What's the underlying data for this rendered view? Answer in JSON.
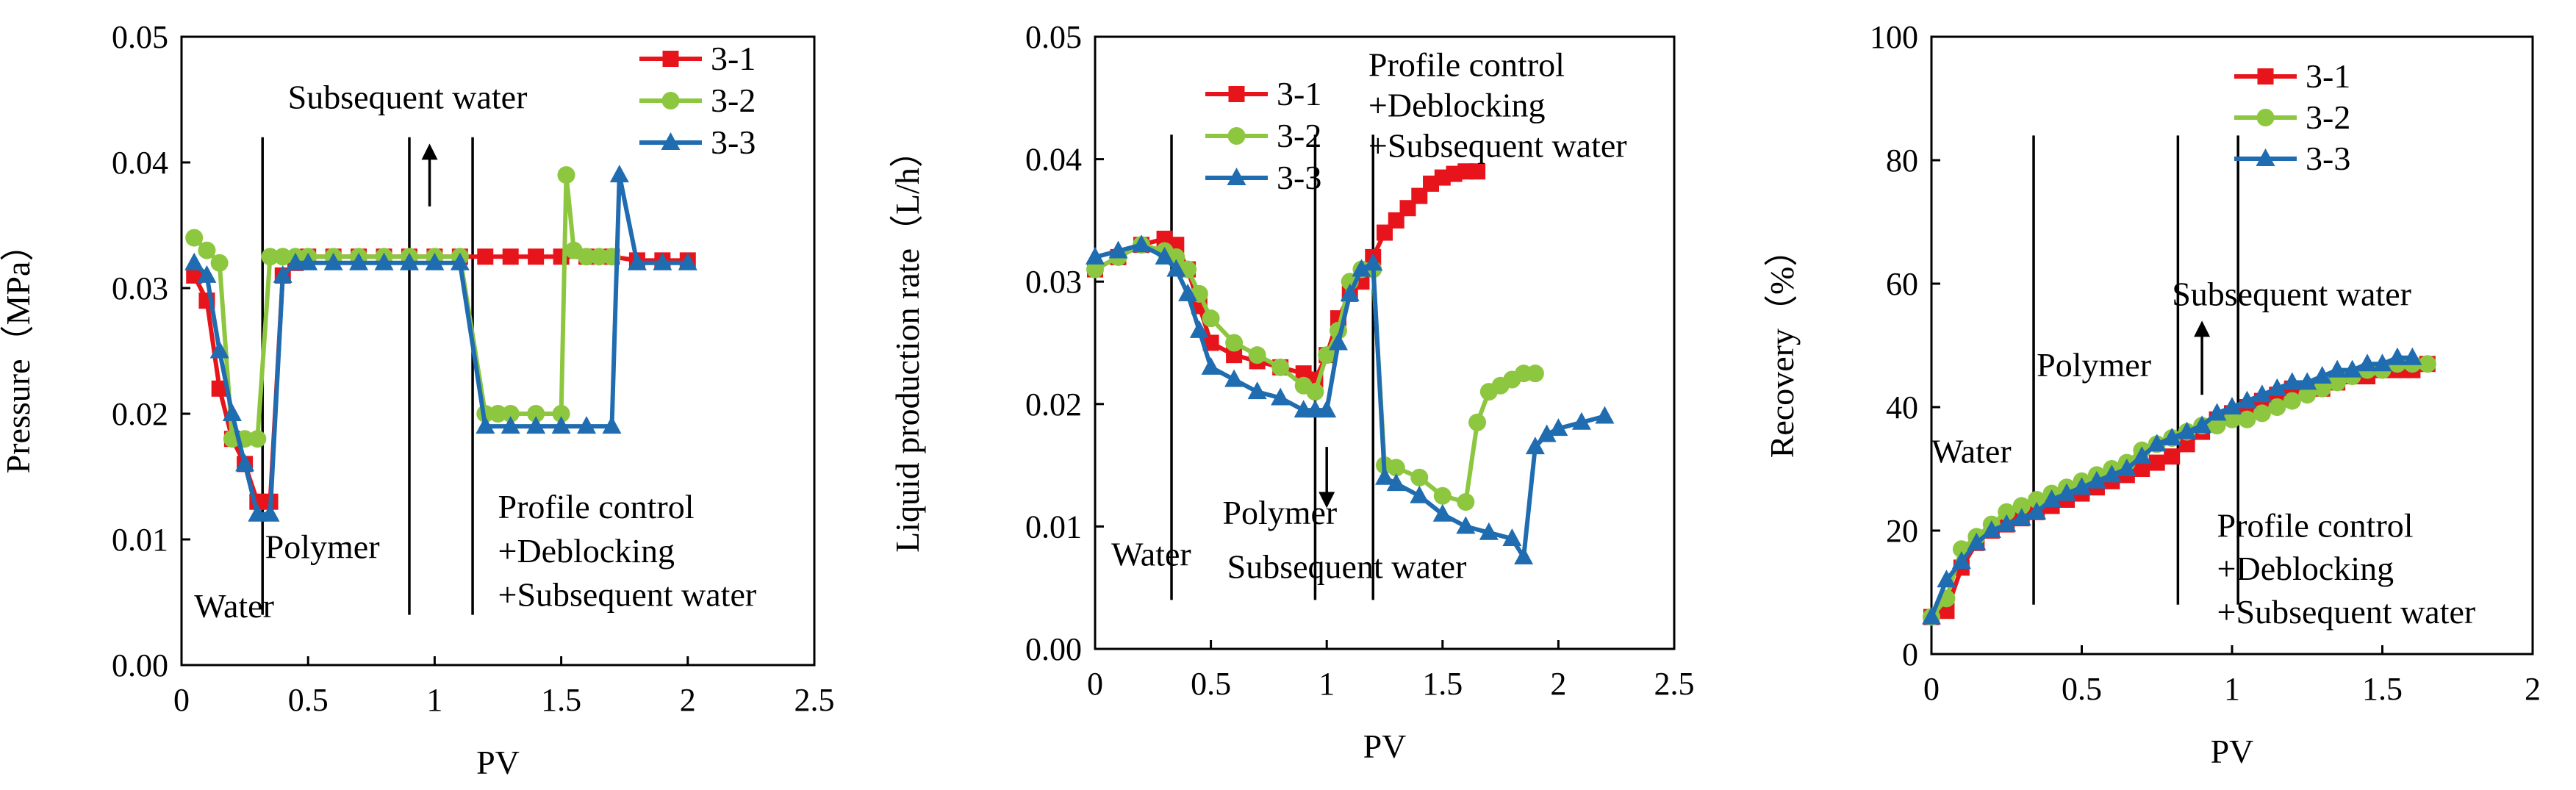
{
  "chart_data": [
    {
      "type": "line",
      "xlabel": "PV",
      "ylabel": "Pressure（MPa）",
      "xlim": [
        0,
        2.5
      ],
      "ylim": [
        0,
        0.05
      ],
      "xticks": [
        "0",
        "0.5",
        "1",
        "1.5",
        "2",
        "2.5"
      ],
      "yticks": [
        "0.00",
        "0.01",
        "0.02",
        "0.03",
        "0.04",
        "0.05"
      ],
      "grid": false,
      "legend": "top-right",
      "series": [
        {
          "name": "3-1",
          "color": "#e8141c",
          "marker": "square",
          "x": [
            0.05,
            0.1,
            0.15,
            0.2,
            0.25,
            0.3,
            0.35,
            0.4,
            0.45,
            0.5,
            0.6,
            0.7,
            0.8,
            0.9,
            1.0,
            1.1,
            1.2,
            1.3,
            1.4,
            1.5,
            1.6,
            1.7,
            1.8,
            1.9,
            2.0
          ],
          "y": [
            0.031,
            0.029,
            0.022,
            0.018,
            0.016,
            0.013,
            0.013,
            0.031,
            0.032,
            0.0325,
            0.0325,
            0.0325,
            0.0325,
            0.0325,
            0.0325,
            0.0325,
            0.0325,
            0.0325,
            0.0325,
            0.0325,
            0.0325,
            0.0325,
            0.0322,
            0.0322,
            0.0322
          ]
        },
        {
          "name": "3-2",
          "color": "#8dc63f",
          "marker": "circle",
          "x": [
            0.05,
            0.1,
            0.15,
            0.2,
            0.25,
            0.3,
            0.35,
            0.4,
            0.45,
            0.5,
            0.6,
            0.7,
            0.8,
            0.9,
            1.0,
            1.1,
            1.2,
            1.25,
            1.3,
            1.4,
            1.5,
            1.52,
            1.55,
            1.6,
            1.65,
            1.7
          ],
          "y": [
            0.034,
            0.033,
            0.032,
            0.018,
            0.018,
            0.018,
            0.0325,
            0.0325,
            0.0325,
            0.0325,
            0.0325,
            0.0325,
            0.0325,
            0.0325,
            0.0325,
            0.0325,
            0.02,
            0.02,
            0.02,
            0.02,
            0.02,
            0.039,
            0.033,
            0.0325,
            0.0325,
            0.0325
          ]
        },
        {
          "name": "3-3",
          "color": "#1f6cb0",
          "marker": "triangle",
          "x": [
            0.05,
            0.1,
            0.15,
            0.2,
            0.25,
            0.3,
            0.35,
            0.4,
            0.45,
            0.5,
            0.6,
            0.7,
            0.8,
            0.9,
            1.0,
            1.1,
            1.2,
            1.3,
            1.4,
            1.5,
            1.6,
            1.7,
            1.73,
            1.8,
            1.9,
            2.0
          ],
          "y": [
            0.032,
            0.031,
            0.025,
            0.02,
            0.016,
            0.012,
            0.012,
            0.031,
            0.032,
            0.032,
            0.032,
            0.032,
            0.032,
            0.032,
            0.032,
            0.032,
            0.019,
            0.019,
            0.019,
            0.019,
            0.019,
            0.019,
            0.039,
            0.032,
            0.032,
            0.032
          ]
        }
      ],
      "stage_lines_x": [
        0.32,
        0.9,
        1.15
      ],
      "annotations": [
        {
          "text": "Subsequent water",
          "x": 0.42,
          "y": 0.0443
        },
        {
          "text": "Polymer",
          "x": 0.33,
          "y": 0.0085
        },
        {
          "text": "Water",
          "x": 0.05,
          "y": 0.0038
        },
        {
          "text": "Profile control",
          "x": 1.25,
          "y": 0.0117
        },
        {
          "text": "+Deblocking",
          "x": 1.25,
          "y": 0.0082
        },
        {
          "text": "+Subsequent  water",
          "x": 1.25,
          "y": 0.0047
        }
      ],
      "arrows": [
        {
          "x": 0.98,
          "from": 0.0365,
          "to": 0.0415
        }
      ]
    },
    {
      "type": "line",
      "xlabel": "PV",
      "ylabel": "Liquid production rate（L/h）",
      "xlim": [
        0,
        2.5
      ],
      "ylim": [
        0,
        0.05
      ],
      "xticks": [
        "0",
        "0.5",
        "1",
        "1.5",
        "2",
        "2.5"
      ],
      "yticks": [
        "0.00",
        "0.01",
        "0.02",
        "0.03",
        "0.04",
        "0.05"
      ],
      "grid": false,
      "legend": "top-left",
      "series": [
        {
          "name": "3-1",
          "color": "#e8141c",
          "marker": "square",
          "x": [
            0.0,
            0.1,
            0.2,
            0.3,
            0.35,
            0.4,
            0.45,
            0.5,
            0.6,
            0.7,
            0.8,
            0.9,
            0.95,
            1.0,
            1.05,
            1.1,
            1.15,
            1.2,
            1.25,
            1.3,
            1.35,
            1.4,
            1.45,
            1.5,
            1.55,
            1.6,
            1.65
          ],
          "y": [
            0.031,
            0.032,
            0.033,
            0.0335,
            0.033,
            0.031,
            0.028,
            0.025,
            0.024,
            0.0235,
            0.023,
            0.0225,
            0.022,
            0.024,
            0.027,
            0.029,
            0.03,
            0.032,
            0.034,
            0.035,
            0.036,
            0.037,
            0.038,
            0.0385,
            0.0388,
            0.039,
            0.039
          ]
        },
        {
          "name": "3-2",
          "color": "#8dc63f",
          "marker": "circle",
          "x": [
            0.0,
            0.1,
            0.2,
            0.3,
            0.35,
            0.4,
            0.45,
            0.5,
            0.6,
            0.7,
            0.8,
            0.9,
            0.95,
            1.0,
            1.05,
            1.1,
            1.15,
            1.2,
            1.25,
            1.3,
            1.4,
            1.5,
            1.6,
            1.65,
            1.7,
            1.75,
            1.8,
            1.85,
            1.9
          ],
          "y": [
            0.031,
            0.032,
            0.033,
            0.0325,
            0.032,
            0.031,
            0.029,
            0.027,
            0.025,
            0.024,
            0.023,
            0.0215,
            0.021,
            0.024,
            0.026,
            0.03,
            0.031,
            0.031,
            0.015,
            0.0148,
            0.014,
            0.0125,
            0.012,
            0.0185,
            0.021,
            0.0215,
            0.022,
            0.0225,
            0.0225
          ]
        },
        {
          "name": "3-3",
          "color": "#1f6cb0",
          "marker": "triangle",
          "x": [
            0.0,
            0.1,
            0.2,
            0.3,
            0.35,
            0.4,
            0.45,
            0.5,
            0.6,
            0.7,
            0.8,
            0.9,
            0.95,
            1.0,
            1.05,
            1.1,
            1.15,
            1.2,
            1.25,
            1.3,
            1.4,
            1.5,
            1.6,
            1.7,
            1.8,
            1.85,
            1.9,
            1.95,
            2.0,
            2.1,
            2.2
          ],
          "y": [
            0.032,
            0.0325,
            0.033,
            0.032,
            0.031,
            0.029,
            0.026,
            0.023,
            0.022,
            0.021,
            0.0205,
            0.0195,
            0.0195,
            0.0195,
            0.025,
            0.029,
            0.031,
            0.0315,
            0.014,
            0.0135,
            0.0125,
            0.011,
            0.01,
            0.0095,
            0.009,
            0.0075,
            0.0165,
            0.0175,
            0.018,
            0.0185,
            0.019
          ]
        }
      ],
      "stage_lines_x": [
        0.33,
        0.95,
        1.2
      ],
      "annotations": [
        {
          "text": "Profile control",
          "x": 1.18,
          "y": 0.0468
        },
        {
          "text": "+Deblocking",
          "x": 1.18,
          "y": 0.0435
        },
        {
          "text": "+Subsequent  water",
          "x": 1.18,
          "y": 0.0402
        },
        {
          "text": "Polymer",
          "x": 0.55,
          "y": 0.0102
        },
        {
          "text": "Water",
          "x": 0.07,
          "y": 0.0068
        },
        {
          "text": "Subsequent water",
          "x": 0.57,
          "y": 0.0058
        }
      ],
      "arrows": [
        {
          "x": 1.0,
          "from": 0.0165,
          "to": 0.0115
        }
      ]
    },
    {
      "type": "line",
      "xlabel": "PV",
      "ylabel": "Recovery（%）",
      "xlim": [
        0,
        2
      ],
      "ylim": [
        0,
        100
      ],
      "xticks": [
        "0",
        "0.5",
        "1",
        "1.5",
        "2"
      ],
      "yticks": [
        "0",
        "20",
        "40",
        "60",
        "80",
        "100"
      ],
      "grid": false,
      "legend": "top-left",
      "series": [
        {
          "name": "3-1",
          "color": "#e8141c",
          "marker": "square",
          "x": [
            0.0,
            0.05,
            0.1,
            0.15,
            0.2,
            0.25,
            0.3,
            0.35,
            0.4,
            0.45,
            0.5,
            0.55,
            0.6,
            0.65,
            0.7,
            0.75,
            0.8,
            0.85,
            0.9,
            0.95,
            1.0,
            1.05,
            1.1,
            1.15,
            1.2,
            1.25,
            1.3,
            1.35,
            1.4,
            1.45,
            1.5,
            1.55,
            1.6,
            1.65
          ],
          "y": [
            6,
            7,
            14,
            18,
            20,
            21,
            22,
            23,
            24,
            25,
            26,
            27,
            28,
            29,
            30,
            31,
            32,
            34,
            36,
            38,
            39,
            40,
            41,
            42,
            43,
            43,
            43,
            44,
            45,
            45,
            46,
            46,
            46,
            47
          ]
        },
        {
          "name": "3-2",
          "color": "#8dc63f",
          "marker": "circle",
          "x": [
            0.0,
            0.05,
            0.1,
            0.15,
            0.2,
            0.25,
            0.3,
            0.35,
            0.4,
            0.45,
            0.5,
            0.55,
            0.6,
            0.65,
            0.7,
            0.75,
            0.8,
            0.85,
            0.9,
            0.95,
            1.0,
            1.05,
            1.1,
            1.15,
            1.2,
            1.25,
            1.3,
            1.35,
            1.4,
            1.45,
            1.5,
            1.55,
            1.6,
            1.65
          ],
          "y": [
            6,
            9,
            17,
            19,
            21,
            23,
            24,
            25,
            26,
            27,
            28,
            29,
            30,
            31,
            33,
            34,
            35,
            36,
            37,
            37,
            38,
            38,
            39,
            40,
            41,
            42,
            43,
            44,
            45,
            46,
            46,
            47,
            47,
            47
          ]
        },
        {
          "name": "3-3",
          "color": "#1f6cb0",
          "marker": "triangle",
          "x": [
            0.0,
            0.05,
            0.1,
            0.15,
            0.2,
            0.25,
            0.3,
            0.35,
            0.4,
            0.45,
            0.5,
            0.55,
            0.6,
            0.65,
            0.7,
            0.75,
            0.8,
            0.85,
            0.9,
            0.95,
            1.0,
            1.05,
            1.1,
            1.15,
            1.2,
            1.25,
            1.3,
            1.35,
            1.4,
            1.45,
            1.5,
            1.55,
            1.6
          ],
          "y": [
            6,
            12,
            15,
            18,
            20,
            21,
            22,
            23,
            25,
            26,
            27,
            28,
            29,
            30,
            32,
            34,
            35,
            36,
            37,
            39,
            40,
            41,
            42,
            43,
            44,
            44,
            45,
            46,
            46,
            47,
            47,
            48,
            48
          ]
        }
      ],
      "stage_lines_x": [
        0.34,
        0.82,
        1.02
      ],
      "annotations": [
        {
          "text": "Subsequent water",
          "x": 0.8,
          "y": 56.5
        },
        {
          "text": "Polymer",
          "x": 0.35,
          "y": 45
        },
        {
          "text": "Water",
          "x": 0.0,
          "y": 31
        },
        {
          "text": "Profile control",
          "x": 0.95,
          "y": 19
        },
        {
          "text": "+Deblocking",
          "x": 0.95,
          "y": 12
        },
        {
          "text": "+Subsequent  water",
          "x": 0.95,
          "y": 5
        }
      ],
      "arrows": [
        {
          "x": 0.9,
          "from": 42,
          "to": 54
        }
      ]
    }
  ]
}
